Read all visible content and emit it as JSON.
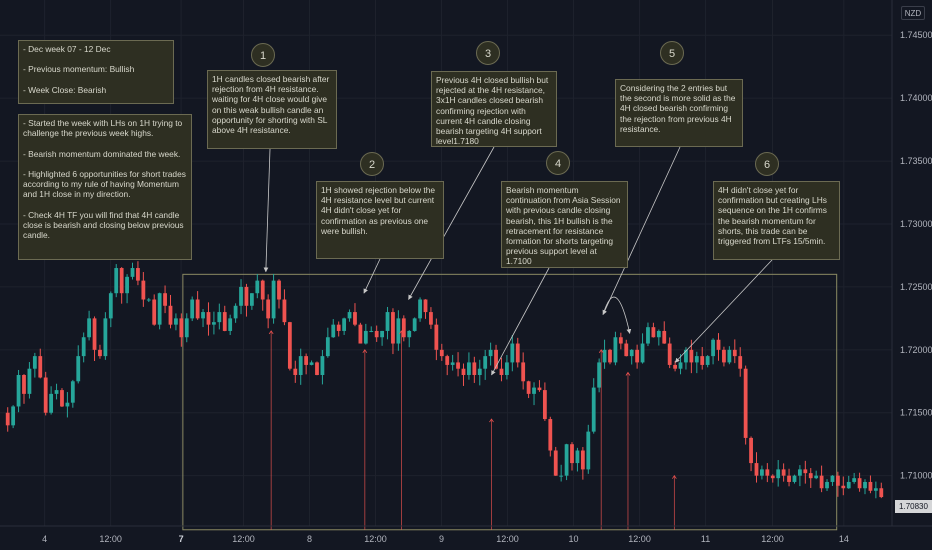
{
  "currency_badge": "NZD",
  "last_price": "1.70830",
  "notes": {
    "weekly": "- Dec week 07 - 12 Dec\n\n- Previous momentum: Bullish\n\n- Week Close: Bearish",
    "summary": "- Started the week with LHs on 1H trying to challenge the previous week highs.\n\n- Bearish momentum dominated the week.\n\n- Highlighted 6 opportunities for short trades according to my rule of having Momentum and 1H close in my direction.\n\n- Check 4H TF you will find that 4H candle close is bearish and closing below previous candle.",
    "n1": "1H candles closed bearish after rejection from 4H resistance.\nwaiting for 4H close would give on this weak bullish candle an opportunity for shorting with SL above 4H resistance.",
    "n2": "1H showed rejection below the 4H resistance level but current 4H didn't close yet for confirmation as previous one were bullish.",
    "n3": "Previous 4H closed bullish but rejected at the 4H resistance, 3x1H candles closed bearish confirming rejection with current 4H candle closing bearish targeting 4H support level1.7180",
    "n4": "Bearish momentum continuation from Asia Session with previous candle closing bearish, this 1H bullish is the retracement for resistance formation for shorts targeting previous support level at 1.7100",
    "n5": "Considering the 2 entries but the second is more solid as the 4H closed bearish confirming the rejection from previous 4H resistance.",
    "n6": "4H didn't close yet for confirmation but creating LHs sequence on the 1H confirms the bearish momentum for shorts, this trade can be triggered from LTFs 15/5min."
  },
  "badges": [
    "1",
    "2",
    "3",
    "4",
    "5",
    "6"
  ],
  "chart_data": {
    "type": "candlestick",
    "symbol_currency": "NZD",
    "ylim": [
      1.706,
      1.7478
    ],
    "y_ticks": [
      "1.74500",
      "1.74000",
      "1.73500",
      "1.73000",
      "1.72500",
      "1.72000",
      "1.71500",
      "1.71000"
    ],
    "x_ticks": [
      {
        "label": "4",
        "bold": false,
        "pos": 0.05
      },
      {
        "label": "12:00",
        "bold": false,
        "pos": 0.124
      },
      {
        "label": "7",
        "bold": true,
        "pos": 0.203
      },
      {
        "label": "12:00",
        "bold": false,
        "pos": 0.273
      },
      {
        "label": "8",
        "bold": false,
        "pos": 0.347
      },
      {
        "label": "12:00",
        "bold": false,
        "pos": 0.421
      },
      {
        "label": "9",
        "bold": false,
        "pos": 0.495
      },
      {
        "label": "12:00",
        "bold": false,
        "pos": 0.569
      },
      {
        "label": "10",
        "bold": false,
        "pos": 0.643
      },
      {
        "label": "12:00",
        "bold": false,
        "pos": 0.717
      },
      {
        "label": "11",
        "bold": false,
        "pos": 0.791
      },
      {
        "label": "12:00",
        "bold": false,
        "pos": 0.866
      },
      {
        "label": "14",
        "bold": false,
        "pos": 0.946
      }
    ],
    "trend_closes": [
      1.714,
      1.7155,
      1.718,
      1.7165,
      1.7185,
      1.7195,
      1.7178,
      1.715,
      1.7165,
      1.7168,
      1.7155,
      1.7158,
      1.7175,
      1.7195,
      1.721,
      1.7225,
      1.72,
      1.7195,
      1.7225,
      1.7245,
      1.7265,
      1.7245,
      1.7258,
      1.7265,
      1.7255,
      1.724,
      1.724,
      1.722,
      1.7245,
      1.7235,
      1.722,
      1.7225,
      1.721,
      1.7225,
      1.724,
      1.7225,
      1.723,
      1.722,
      1.7222,
      1.723,
      1.7215,
      1.7225,
      1.7235,
      1.725,
      1.7235,
      1.7245,
      1.7255,
      1.724,
      1.7225,
      1.7255,
      1.724,
      1.7222,
      1.7185,
      1.718,
      1.7195,
      1.7188,
      1.719,
      1.718,
      1.7195,
      1.721,
      1.722,
      1.7215,
      1.7225,
      1.723,
      1.722,
      1.7205,
      1.7215,
      1.7215,
      1.721,
      1.7215,
      1.723,
      1.7205,
      1.7225,
      1.721,
      1.7215,
      1.7225,
      1.724,
      1.723,
      1.722,
      1.72,
      1.7195,
      1.7188,
      1.719,
      1.7185,
      1.718,
      1.719,
      1.718,
      1.7185,
      1.7195,
      1.72,
      1.7185,
      1.718,
      1.719,
      1.7205,
      1.719,
      1.7175,
      1.7165,
      1.717,
      1.7168,
      1.7145,
      1.712,
      1.71,
      1.71,
      1.7125,
      1.711,
      1.712,
      1.7105,
      1.7135,
      1.717,
      1.719,
      1.72,
      1.719,
      1.721,
      1.7205,
      1.7195,
      1.72,
      1.719,
      1.7205,
      1.7218,
      1.721,
      1.7215,
      1.7205,
      1.7188,
      1.7185,
      1.719,
      1.72,
      1.719,
      1.7195,
      1.7188,
      1.7195,
      1.7208,
      1.72,
      1.719,
      1.72,
      1.7195,
      1.7185,
      1.713,
      1.711,
      1.71,
      1.7105,
      1.71,
      1.7098,
      1.7105,
      1.71,
      1.7095,
      1.71,
      1.7105,
      1.7102,
      1.7098,
      1.71,
      1.709,
      1.7095,
      1.71,
      1.7092,
      1.709,
      1.7095,
      1.7098,
      1.709,
      1.7095,
      1.7088,
      1.709,
      1.7083
    ],
    "zone": {
      "price_top": 1.726,
      "price_bottom": 1.7057,
      "start_fraction": 0.205,
      "end_fraction": 0.938
    },
    "annotation_targets": {
      "1": 0.298,
      "2": 0.408,
      "3": 0.458,
      "4": 0.551,
      "5a": 0.676,
      "5b": 0.706,
      "6": 0.757
    }
  }
}
